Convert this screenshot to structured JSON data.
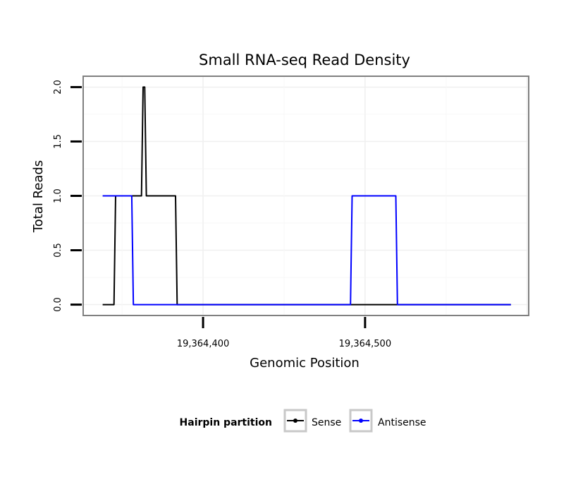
{
  "chart_data": {
    "type": "line",
    "title": "Small RNA-seq Read Density",
    "xlabel": "Genomic Position",
    "ylabel": "Total Reads",
    "xlim": [
      19364326,
      19364601
    ],
    "ylim": [
      -0.1,
      2.1
    ],
    "x_ticks": [
      19364400,
      19364500
    ],
    "x_tick_labels": [
      "19,364,400",
      "19,364,500"
    ],
    "y_ticks": [
      0.0,
      0.5,
      1.0,
      1.5,
      2.0
    ],
    "y_tick_labels": [
      "0.0",
      "0.5",
      "1.0",
      "1.5",
      "2.0"
    ],
    "grid": true,
    "legend": {
      "title": "Hairpin partition",
      "position": "bottom"
    },
    "series": [
      {
        "name": "Sense",
        "color": "#000000",
        "x": [
          19364338,
          19364345,
          19364346,
          19364352,
          19364362,
          19364363,
          19364364,
          19364365,
          19364373,
          19364383,
          19364384,
          19364413,
          19364440,
          19364530,
          19364590
        ],
        "y": [
          0,
          0,
          1,
          1,
          1,
          2,
          2,
          1,
          1,
          1,
          0,
          0,
          0,
          0,
          0
        ]
      },
      {
        "name": "Antisense",
        "color": "#0000ff",
        "x": [
          19364338,
          19364350,
          19364356,
          19364357,
          19364383,
          19364470,
          19364491,
          19364492,
          19364519,
          19364520,
          19364590
        ],
        "y": [
          1,
          1,
          1,
          0,
          0,
          0,
          0,
          1,
          1,
          0,
          0
        ]
      }
    ]
  }
}
